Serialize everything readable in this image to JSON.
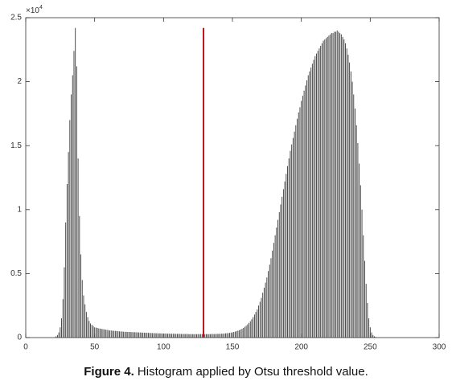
{
  "chart_data": {
    "type": "stem",
    "caption": {
      "label": "Figure 4.",
      "text": "Histogram applied by Otsu threshold value."
    },
    "y_exponent": {
      "base": "×10",
      "power": "4"
    },
    "color": "#3a3a3a",
    "xlim": [
      0,
      300
    ],
    "xticks": [
      0,
      50,
      100,
      150,
      200,
      250,
      300
    ],
    "ylim": [
      0,
      2.5
    ],
    "yticks": [
      0,
      0.5,
      1,
      1.5,
      2,
      2.5
    ],
    "threshold": {
      "x": 129,
      "top": 2.42,
      "color": "#c0141c"
    },
    "x": [
      22,
      23,
      24,
      25,
      26,
      27,
      28,
      29,
      30,
      31,
      32,
      33,
      34,
      35,
      36,
      37,
      38,
      39,
      40,
      41,
      42,
      43,
      44,
      45,
      46,
      47,
      48,
      49,
      50,
      51,
      52,
      53,
      54,
      55,
      56,
      57,
      58,
      59,
      60,
      61,
      62,
      63,
      64,
      65,
      66,
      67,
      68,
      69,
      70,
      71,
      72,
      73,
      74,
      75,
      76,
      77,
      78,
      79,
      80,
      81,
      82,
      83,
      84,
      85,
      86,
      87,
      88,
      89,
      90,
      91,
      92,
      93,
      94,
      95,
      96,
      97,
      98,
      99,
      100,
      101,
      102,
      103,
      104,
      105,
      106,
      107,
      108,
      109,
      110,
      111,
      112,
      113,
      114,
      115,
      116,
      117,
      118,
      119,
      120,
      121,
      122,
      123,
      124,
      125,
      126,
      127,
      128,
      129,
      130,
      131,
      132,
      133,
      134,
      135,
      136,
      137,
      138,
      139,
      140,
      141,
      142,
      143,
      144,
      145,
      146,
      147,
      148,
      149,
      150,
      151,
      152,
      153,
      154,
      155,
      156,
      157,
      158,
      159,
      160,
      161,
      162,
      163,
      164,
      165,
      166,
      167,
      168,
      169,
      170,
      171,
      172,
      173,
      174,
      175,
      176,
      177,
      178,
      179,
      180,
      181,
      182,
      183,
      184,
      185,
      186,
      187,
      188,
      189,
      190,
      191,
      192,
      193,
      194,
      195,
      196,
      197,
      198,
      199,
      200,
      201,
      202,
      203,
      204,
      205,
      206,
      207,
      208,
      209,
      210,
      211,
      212,
      213,
      214,
      215,
      216,
      217,
      218,
      219,
      220,
      221,
      222,
      223,
      224,
      225,
      226,
      227,
      228,
      229,
      230,
      231,
      232,
      233,
      234,
      235,
      236,
      237,
      238,
      239,
      240,
      241,
      242,
      243,
      244,
      245,
      246,
      247,
      248,
      249,
      250,
      251,
      252,
      253,
      254,
      255
    ],
    "values": [
      0.01,
      0.02,
      0.04,
      0.08,
      0.15,
      0.3,
      0.55,
      0.9,
      1.2,
      1.45,
      1.7,
      1.9,
      2.05,
      2.24,
      2.42,
      2.12,
      1.4,
      0.95,
      0.65,
      0.45,
      0.33,
      0.26,
      0.2,
      0.16,
      0.13,
      0.11,
      0.1,
      0.09,
      0.08,
      0.078,
      0.075,
      0.072,
      0.07,
      0.068,
      0.066,
      0.064,
      0.062,
      0.06,
      0.058,
      0.056,
      0.055,
      0.054,
      0.053,
      0.052,
      0.051,
      0.05,
      0.049,
      0.048,
      0.047,
      0.046,
      0.045,
      0.045,
      0.044,
      0.044,
      0.043,
      0.043,
      0.042,
      0.042,
      0.041,
      0.041,
      0.04,
      0.04,
      0.039,
      0.039,
      0.038,
      0.038,
      0.037,
      0.037,
      0.036,
      0.036,
      0.035,
      0.035,
      0.034,
      0.034,
      0.033,
      0.033,
      0.033,
      0.032,
      0.032,
      0.032,
      0.031,
      0.031,
      0.031,
      0.03,
      0.03,
      0.03,
      0.03,
      0.029,
      0.029,
      0.029,
      0.029,
      0.028,
      0.028,
      0.028,
      0.028,
      0.028,
      0.027,
      0.027,
      0.027,
      0.027,
      0.027,
      0.027,
      0.027,
      0.027,
      0.027,
      0.027,
      0.027,
      0.027,
      0.027,
      0.027,
      0.027,
      0.027,
      0.027,
      0.028,
      0.028,
      0.028,
      0.028,
      0.029,
      0.029,
      0.03,
      0.03,
      0.031,
      0.032,
      0.033,
      0.034,
      0.035,
      0.037,
      0.039,
      0.041,
      0.044,
      0.047,
      0.05,
      0.054,
      0.058,
      0.063,
      0.069,
      0.076,
      0.084,
      0.093,
      0.103,
      0.115,
      0.128,
      0.143,
      0.16,
      0.18,
      0.2,
      0.22,
      0.25,
      0.28,
      0.31,
      0.35,
      0.39,
      0.43,
      0.47,
      0.52,
      0.57,
      0.62,
      0.68,
      0.74,
      0.8,
      0.86,
      0.92,
      0.98,
      1.04,
      1.1,
      1.16,
      1.22,
      1.28,
      1.34,
      1.4,
      1.46,
      1.51,
      1.56,
      1.61,
      1.66,
      1.71,
      1.76,
      1.8,
      1.85,
      1.89,
      1.93,
      1.97,
      2.01,
      2.05,
      2.08,
      2.11,
      2.14,
      2.17,
      2.2,
      2.22,
      2.24,
      2.26,
      2.28,
      2.3,
      2.32,
      2.33,
      2.34,
      2.35,
      2.36,
      2.37,
      2.38,
      2.38,
      2.39,
      2.39,
      2.4,
      2.39,
      2.38,
      2.37,
      2.35,
      2.33,
      2.3,
      2.26,
      2.21,
      2.15,
      2.08,
      2.0,
      1.9,
      1.79,
      1.66,
      1.52,
      1.36,
      1.19,
      1.0,
      0.8,
      0.6,
      0.42,
      0.27,
      0.15,
      0.08,
      0.04,
      0.02,
      0.01,
      0.005,
      0.002
    ]
  }
}
